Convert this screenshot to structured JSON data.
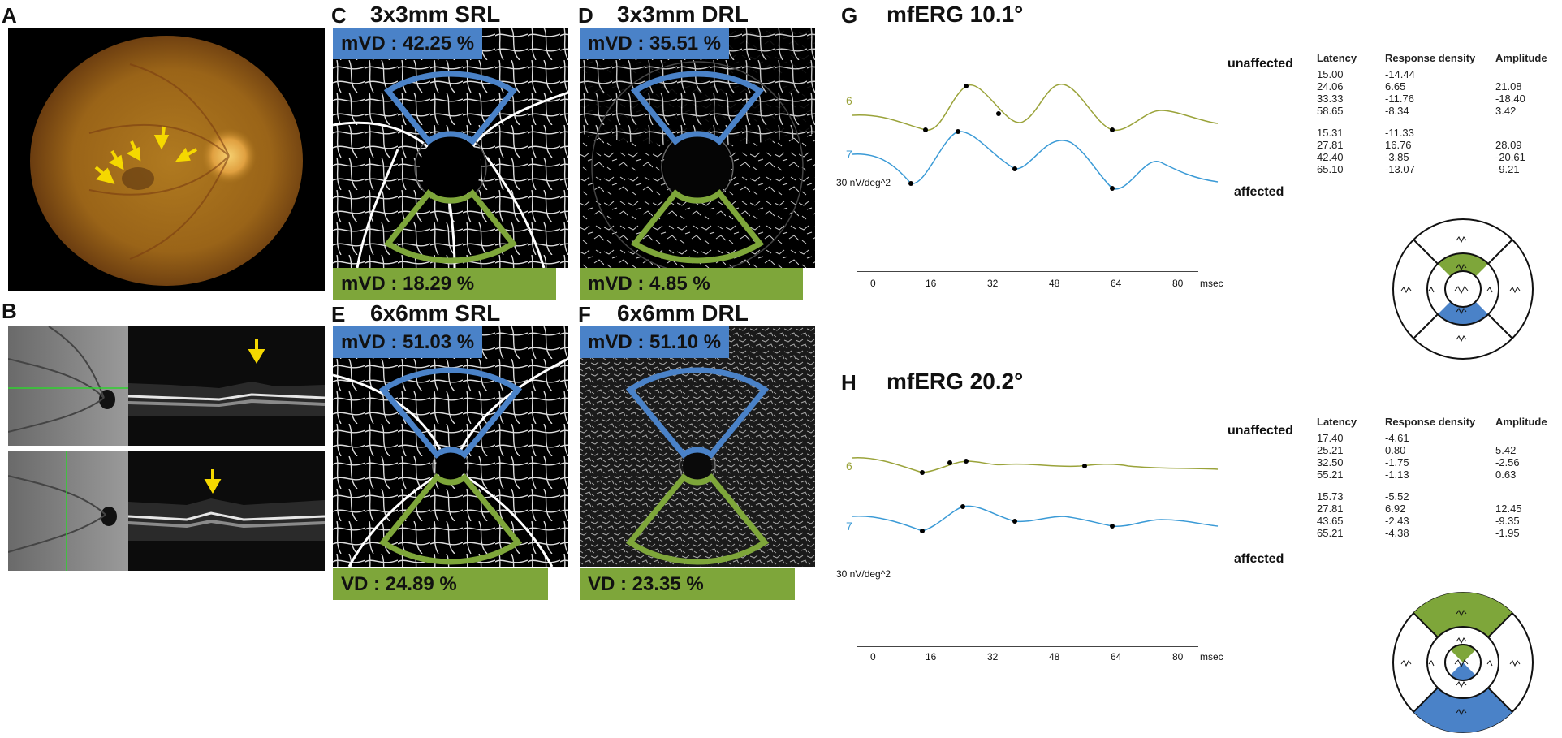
{
  "panels": {
    "A": {
      "label": "A"
    },
    "B": {
      "label": "B"
    },
    "C": {
      "label": "C",
      "title": "3x3mm SRL",
      "top_badge": "mVD : 42.25 %",
      "bottom_badge": "mVD : 18.29 %"
    },
    "D": {
      "label": "D",
      "title": "3x3mm DRL",
      "top_badge": "mVD : 35.51 %",
      "bottom_badge": "mVD : 4.85 %"
    },
    "E": {
      "label": "E",
      "title": "6x6mm SRL",
      "top_badge": "mVD : 51.03 %",
      "bottom_badge": "VD : 24.89 %"
    },
    "F": {
      "label": "F",
      "title": "6x6mm DRL",
      "top_badge": "mVD : 51.10 %",
      "bottom_badge": "VD : 23.35 %"
    },
    "G": {
      "label": "G",
      "title": "mfERG 10.1°",
      "unaffected": "unaffected",
      "affected": "affected",
      "trace_labels": [
        "6",
        "7"
      ],
      "scale": "30 nV/deg^2",
      "x_ticks": [
        "0",
        "16",
        "32",
        "48",
        "64",
        "80"
      ],
      "x_unit": "msec",
      "headers": [
        "Latency",
        "Response density",
        "Amplitude"
      ],
      "rows": [
        [
          "15.00",
          "-14.44",
          ""
        ],
        [
          "24.06",
          "6.65",
          "21.08"
        ],
        [
          "33.33",
          "-11.76",
          "-18.40"
        ],
        [
          "58.65",
          "-8.34",
          "3.42"
        ],
        [
          "15.31",
          "-11.33",
          ""
        ],
        [
          "27.81",
          "16.76",
          "28.09"
        ],
        [
          "42.40",
          "-3.85",
          "-20.61"
        ],
        [
          "65.10",
          "-13.07",
          "-9.21"
        ]
      ]
    },
    "H": {
      "label": "H",
      "title": "mfERG 20.2°",
      "unaffected": "unaffected",
      "affected": "affected",
      "trace_labels": [
        "6",
        "7"
      ],
      "scale": "30 nV/deg^2",
      "x_ticks": [
        "0",
        "16",
        "32",
        "48",
        "64",
        "80"
      ],
      "x_unit": "msec",
      "headers": [
        "Latency",
        "Response density",
        "Amplitude"
      ],
      "rows": [
        [
          "17.40",
          "-4.61",
          ""
        ],
        [
          "25.21",
          "0.80",
          "5.42"
        ],
        [
          "32.50",
          "-1.75",
          "-2.56"
        ],
        [
          "55.21",
          "-1.13",
          "0.63"
        ],
        [
          "15.73",
          "-5.52",
          ""
        ],
        [
          "27.81",
          "6.92",
          "12.45"
        ],
        [
          "43.65",
          "-2.43",
          "-9.35"
        ],
        [
          "65.21",
          "-4.38",
          "-1.95"
        ]
      ]
    }
  },
  "colors": {
    "blue": "#4a82c8",
    "green": "#7ea63a",
    "arrow": "#f5d800",
    "trace_yellow": "#9aa33a",
    "trace_blue": "#3a9ad6"
  }
}
